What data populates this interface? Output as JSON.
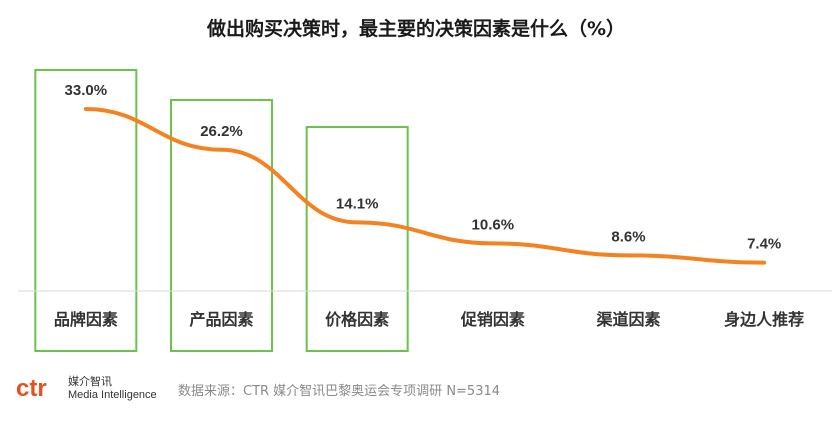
{
  "chart_data": {
    "type": "line",
    "title": "做出购买决策时，最主要的决策因素是什么（%）",
    "categories": [
      "品牌因素",
      "产品因素",
      "价格因素",
      "促销因素",
      "渠道因素",
      "身边人推荐"
    ],
    "series": [
      {
        "values": [
          33.0,
          26.2,
          14.1,
          10.6,
          8.6,
          7.4
        ],
        "labels": [
          "33.0%",
          "26.2%",
          "14.1%",
          "10.6%",
          "8.6%",
          "7.4%"
        ]
      }
    ],
    "highlighted_categories": [
      "品牌因素",
      "产品因素",
      "价格因素"
    ],
    "ylim": [
      0,
      40
    ],
    "grid": false,
    "legend": "none",
    "colors": {
      "line": "#F58220",
      "highlight_box": "#6CC24A",
      "axis": "#d9d9d9",
      "text": "#333333"
    }
  },
  "footer": {
    "logo_text": "ctr",
    "logo_cn": "媒介智讯",
    "logo_en": "Media Intelligence",
    "source": "数据来源：CTR 媒介智讯巴黎奥运会专项调研 N=5314",
    "logo_color": "#E8501E"
  }
}
